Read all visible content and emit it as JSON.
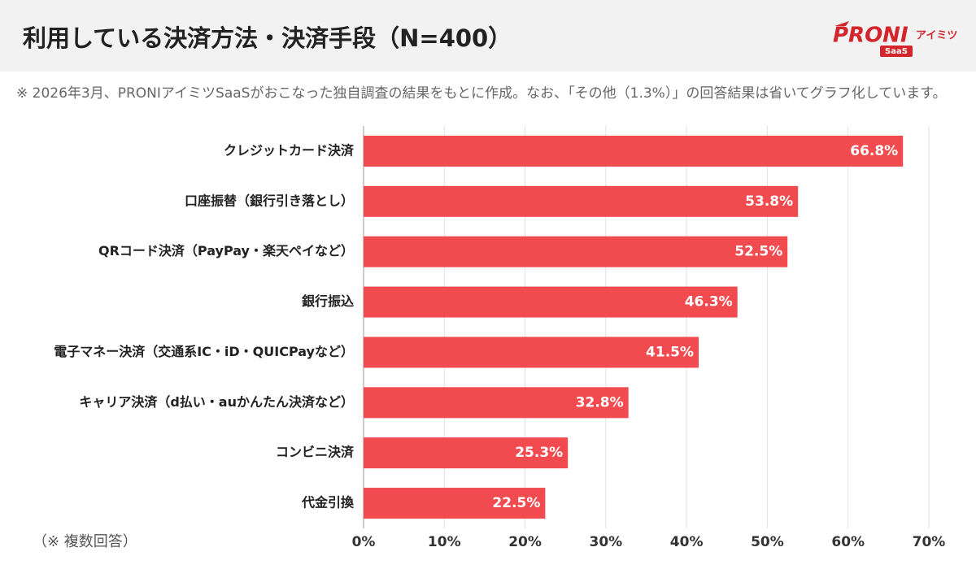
{
  "chart_data": {
    "type": "barh",
    "title": "利用している決済方法・決済手段（N=400）",
    "note": "※ 2026年3月、PRONIアイミツSaaSがおこなった独自調査の結果をもとに作成。なお、「その他（1.3%）」の回答結果は省いてグラフ化しています。",
    "footnote": "（※ 複数回答）",
    "logo": {
      "brand": "PRONI",
      "sub": "アイミツ",
      "badge": "SaaS"
    },
    "categories": [
      "クレジットカード決済",
      "口座振替（銀行引き落とし）",
      "QRコード決済（PayPay・楽天ペイなど）",
      "銀行振込",
      "電子マネー決済（交通系IC・iD・QUICPayなど）",
      "キャリア決済（d払い・auかんたん決済など）",
      "コンビニ決済",
      "代金引換"
    ],
    "values": [
      66.8,
      53.8,
      52.5,
      46.3,
      41.5,
      32.8,
      25.3,
      22.5
    ],
    "value_labels": [
      "66.8%",
      "53.8%",
      "52.5%",
      "46.3%",
      "41.5%",
      "32.8%",
      "25.3%",
      "22.5%"
    ],
    "color": "#f14b4f",
    "xlim": [
      0,
      70
    ],
    "xticks": [
      {
        "value": 0,
        "label": "0%"
      },
      {
        "value": 10,
        "label": "10%"
      },
      {
        "value": 20,
        "label": "20%"
      },
      {
        "value": 30,
        "label": "30%"
      },
      {
        "value": 40,
        "label": "40%"
      },
      {
        "value": 50,
        "label": "50%"
      },
      {
        "value": 60,
        "label": "60%"
      },
      {
        "value": 70,
        "label": "70%"
      }
    ],
    "grid": true
  }
}
